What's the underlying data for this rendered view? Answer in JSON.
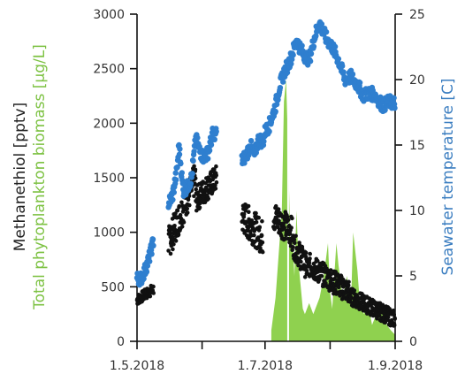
{
  "chart_data": {
    "type": "scatter",
    "x_axis": {
      "ticks": [
        {
          "value": 121,
          "label": "1.5.2018"
        },
        {
          "value": 182,
          "label": "1.7.2018"
        },
        {
          "value": 244,
          "label": "1.9.2018"
        }
      ],
      "minor_ticks": [
        152,
        213
      ],
      "range": [
        121,
        244
      ]
    },
    "y_left": {
      "label": "Methanethiol [pptv]",
      "label_color": "#222222",
      "range": [
        0,
        3000
      ],
      "ticks": [
        0,
        500,
        1000,
        1500,
        2000,
        2500,
        3000
      ]
    },
    "y_left_secondary_label": {
      "label": "Total phytoplankton biomass [µg/L]",
      "label_color": "#7dc243"
    },
    "y_right": {
      "label": "Seawater temperature [C]",
      "label_color": "#3a7dc0",
      "range": [
        0,
        25
      ],
      "ticks": [
        0,
        5,
        10,
        15,
        20,
        25
      ]
    },
    "biomass_area": {
      "color": "#8fd14f",
      "points": [
        [
          185,
          0
        ],
        [
          185,
          100
        ],
        [
          187,
          400
        ],
        [
          190,
          1200
        ],
        [
          191,
          2200
        ],
        [
          192,
          2400
        ],
        [
          193,
          1800
        ],
        [
          194,
          900
        ],
        [
          195,
          1000
        ],
        [
          196,
          600
        ],
        [
          197,
          1200
        ],
        [
          198,
          700
        ],
        [
          199,
          500
        ],
        [
          200,
          300
        ],
        [
          201,
          250
        ],
        [
          203,
          350
        ],
        [
          205,
          250
        ],
        [
          208,
          400
        ],
        [
          210,
          600
        ],
        [
          212,
          900
        ],
        [
          213,
          450
        ],
        [
          214,
          300
        ],
        [
          216,
          900
        ],
        [
          217,
          700
        ],
        [
          219,
          400
        ],
        [
          221,
          600
        ],
        [
          223,
          350
        ],
        [
          224,
          1000
        ],
        [
          226,
          650
        ],
        [
          227,
          400
        ],
        [
          229,
          250
        ],
        [
          231,
          350
        ],
        [
          233,
          150
        ],
        [
          236,
          300
        ],
        [
          238,
          350
        ],
        [
          240,
          150
        ],
        [
          242,
          100
        ],
        [
          244,
          60
        ],
        [
          244,
          0
        ]
      ]
    },
    "biomass_spike": {
      "x": 193,
      "color": "#ffffff"
    },
    "methanethiol": {
      "color": "#111111",
      "segments": [
        {
          "x": [
            121,
            129
          ],
          "y": [
            380,
            480
          ],
          "spread": 50
        },
        {
          "x": [
            136,
            149
          ],
          "y": [
            900,
            1500
          ],
          "spread": 150
        },
        {
          "x": [
            149,
            159
          ],
          "y": [
            1300,
            1500
          ],
          "spread": 120
        },
        {
          "x": [
            171,
            181
          ],
          "y": [
            1150,
            950
          ],
          "spread": 160
        },
        {
          "x": [
            186,
            195
          ],
          "y": [
            1150,
            1000
          ],
          "spread": 140
        },
        {
          "x": [
            195,
            203
          ],
          "y": [
            900,
            650
          ],
          "spread": 120
        },
        {
          "x": [
            203,
            222
          ],
          "y": [
            700,
            450
          ],
          "spread": 110
        },
        {
          "x": [
            222,
            244
          ],
          "y": [
            420,
            200
          ],
          "spread": 80
        }
      ]
    },
    "temperature": {
      "color": "#2f7fcf",
      "points": [
        [
          121,
          4.8
        ],
        [
          123,
          4.8
        ],
        [
          125,
          5.5
        ],
        [
          127,
          6.5
        ],
        [
          129,
          7.8
        ],
        [
          136,
          10.5
        ],
        [
          138,
          11.2
        ],
        [
          140,
          13.0
        ],
        [
          141,
          15.0
        ],
        [
          143,
          11.5
        ],
        [
          145,
          11.8
        ],
        [
          147,
          12.5
        ],
        [
          149,
          15.5
        ],
        [
          151,
          14.5
        ],
        [
          153,
          14.0
        ],
        [
          155,
          14.5
        ],
        [
          157,
          15.8
        ],
        [
          159,
          16.0
        ],
        [
          171,
          13.8
        ],
        [
          173,
          14.2
        ],
        [
          175,
          15.0
        ],
        [
          177,
          14.2
        ],
        [
          179,
          15.5
        ],
        [
          181,
          15.2
        ],
        [
          182,
          16.0
        ],
        [
          184,
          16.5
        ],
        [
          185,
          17.0
        ],
        [
          187,
          18.0
        ],
        [
          189,
          19.5
        ],
        [
          191,
          20.5
        ],
        [
          194,
          21.5
        ],
        [
          197,
          23.0
        ],
        [
          200,
          22.0
        ],
        [
          203,
          21.5
        ],
        [
          206,
          23.5
        ],
        [
          208,
          24.3
        ],
        [
          211,
          23.2
        ],
        [
          214,
          22.5
        ],
        [
          217,
          21.5
        ],
        [
          220,
          20.0
        ],
        [
          223,
          20.2
        ],
        [
          226,
          19.6
        ],
        [
          229,
          18.8
        ],
        [
          232,
          19.0
        ],
        [
          235,
          18.7
        ],
        [
          238,
          18.0
        ],
        [
          241,
          18.3
        ],
        [
          244,
          18.2
        ]
      ],
      "spread": 0.5
    }
  }
}
